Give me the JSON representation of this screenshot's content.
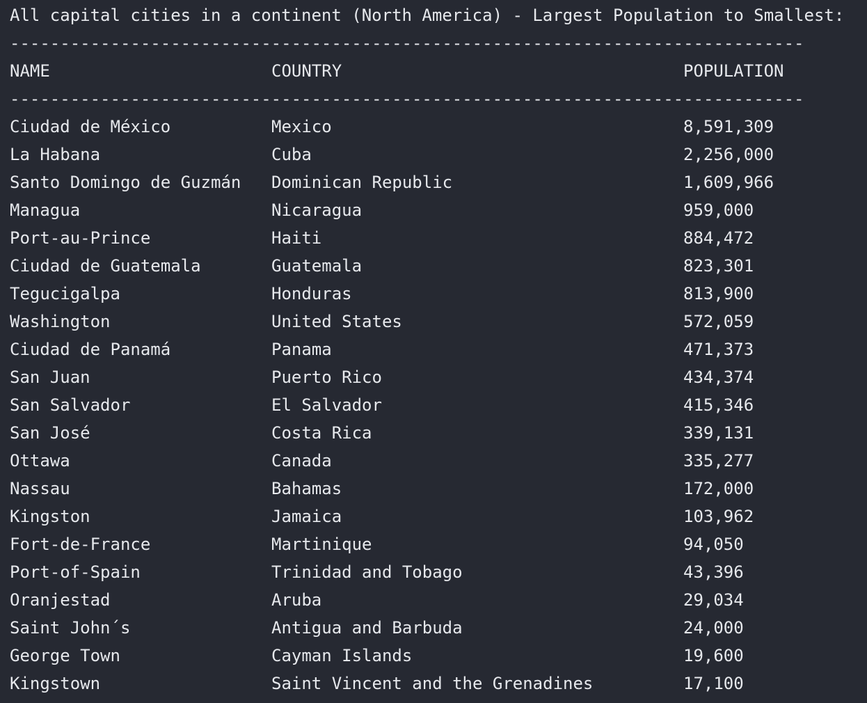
{
  "title": "All capital cities in a continent (North America) - Largest Population to Smallest:",
  "separator": "-------------------------------------------------------------------------------",
  "columns": {
    "name": "NAME",
    "country": "COUNTRY",
    "population": "POPULATION"
  },
  "rows": [
    {
      "name": "Ciudad de México",
      "country": "Mexico",
      "population": "8,591,309"
    },
    {
      "name": "La Habana",
      "country": "Cuba",
      "population": "2,256,000"
    },
    {
      "name": "Santo Domingo de Guzmán",
      "country": "Dominican Republic",
      "population": "1,609,966"
    },
    {
      "name": "Managua",
      "country": "Nicaragua",
      "population": "959,000"
    },
    {
      "name": "Port-au-Prince",
      "country": "Haiti",
      "population": "884,472"
    },
    {
      "name": "Ciudad de Guatemala",
      "country": "Guatemala",
      "population": "823,301"
    },
    {
      "name": "Tegucigalpa",
      "country": "Honduras",
      "population": "813,900"
    },
    {
      "name": "Washington",
      "country": "United States",
      "population": "572,059"
    },
    {
      "name": "Ciudad de Panamá",
      "country": "Panama",
      "population": "471,373"
    },
    {
      "name": "San Juan",
      "country": "Puerto Rico",
      "population": "434,374"
    },
    {
      "name": "San Salvador",
      "country": "El Salvador",
      "population": "415,346"
    },
    {
      "name": "San José",
      "country": "Costa Rica",
      "population": "339,131"
    },
    {
      "name": "Ottawa",
      "country": "Canada",
      "population": "335,277"
    },
    {
      "name": "Nassau",
      "country": "Bahamas",
      "population": "172,000"
    },
    {
      "name": "Kingston",
      "country": "Jamaica",
      "population": "103,962"
    },
    {
      "name": "Fort-de-France",
      "country": "Martinique",
      "population": "94,050"
    },
    {
      "name": "Port-of-Spain",
      "country": "Trinidad and Tobago",
      "population": "43,396"
    },
    {
      "name": "Oranjestad",
      "country": "Aruba",
      "population": "29,034"
    },
    {
      "name": "Saint John´s",
      "country": "Antigua and Barbuda",
      "population": "24,000"
    },
    {
      "name": "George Town",
      "country": "Cayman Islands",
      "population": "19,600"
    },
    {
      "name": "Kingstown",
      "country": "Saint Vincent and the Grenadines",
      "population": "17,100"
    }
  ],
  "colors": {
    "background": "#262932",
    "text": "#e6e8ec"
  }
}
